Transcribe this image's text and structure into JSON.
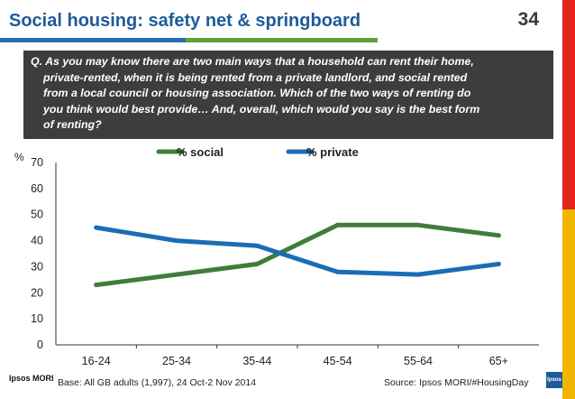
{
  "header": {
    "title": "Social housing: safety net & springboard",
    "page_number": "34"
  },
  "question": {
    "lines": [
      "Q. As you may know there are two main ways that a household can rent their home,",
      "private-rented, when it is being rented from a private landlord, and social rented",
      "from a local council or housing association. Which of the two ways of renting do",
      "you think would best provide… And, overall, which would you say is the best form",
      "of renting?"
    ]
  },
  "chart_data": {
    "type": "line",
    "title": "",
    "xlabel": "",
    "ylabel": "%",
    "categories": [
      "16-24",
      "25-34",
      "35-44",
      "45-54",
      "55-64",
      "65+"
    ],
    "ylim": [
      0,
      70
    ],
    "yticks": [
      "0",
      "10",
      "20",
      "30",
      "40",
      "50",
      "60",
      "70"
    ],
    "grid": false,
    "legend_position": "top",
    "series": [
      {
        "name": "% social",
        "color": "#3f7d3a",
        "values": [
          23,
          27,
          31,
          46,
          46,
          42
        ]
      },
      {
        "name": "% private",
        "color": "#1a6db5",
        "values": [
          45,
          40,
          38,
          28,
          27,
          31
        ]
      }
    ]
  },
  "footer": {
    "logo_text": "Ipsos MORI",
    "base": "Base: All GB adults (1,997), 24 Oct-2 Nov 2014",
    "source": "Source: Ipsos MORI/#HousingDay",
    "badge_text": "Ipsos"
  },
  "colors": {
    "title_blue": "#1e5b9a",
    "rule_blue": "#2a6db5",
    "rule_green": "#5ea33a",
    "side_red": "#e3241b",
    "side_yellow": "#f3b400",
    "question_bg": "#3d3d3d"
  }
}
